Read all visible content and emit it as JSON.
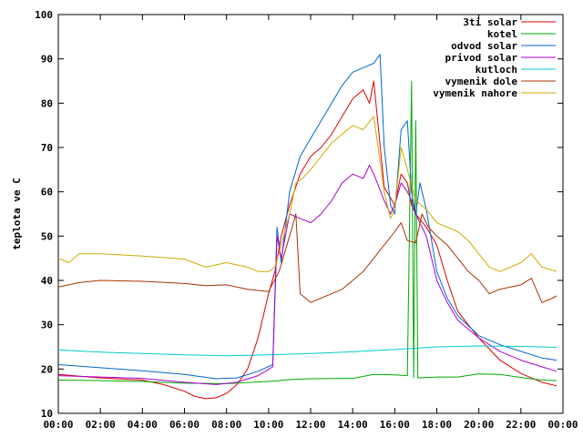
{
  "chart_data": {
    "type": "line",
    "title": "",
    "xlabel": "",
    "ylabel": "teplota ve C",
    "x_ticks": [
      "00:00",
      "02:00",
      "04:00",
      "06:00",
      "08:00",
      "10:00",
      "12:00",
      "14:00",
      "16:00",
      "18:00",
      "20:00",
      "22:00",
      "00:00"
    ],
    "xlim": [
      0,
      24
    ],
    "ylim": [
      10,
      100
    ],
    "y_ticks": [
      10,
      20,
      30,
      40,
      50,
      60,
      70,
      80,
      90,
      100
    ],
    "grid": false,
    "legend_position": "top-right",
    "series": [
      {
        "name": "3ti solar",
        "color": "#dd0000",
        "points": [
          [
            0,
            18.8
          ],
          [
            2,
            18
          ],
          [
            4,
            17.5
          ],
          [
            5,
            16.5
          ],
          [
            6,
            15
          ],
          [
            6.5,
            13.8
          ],
          [
            7,
            13.3
          ],
          [
            7.5,
            13.5
          ],
          [
            8,
            14.5
          ],
          [
            8.5,
            16.5
          ],
          [
            9,
            20
          ],
          [
            9.5,
            27
          ],
          [
            10,
            37
          ],
          [
            10.3,
            42
          ],
          [
            10.6,
            50
          ],
          [
            11,
            57
          ],
          [
            11.5,
            64
          ],
          [
            12,
            68
          ],
          [
            12.5,
            70
          ],
          [
            13,
            73
          ],
          [
            13.5,
            77
          ],
          [
            14,
            81
          ],
          [
            14.5,
            83
          ],
          [
            14.8,
            80
          ],
          [
            15,
            85
          ],
          [
            15.5,
            61
          ],
          [
            16,
            57
          ],
          [
            16.3,
            64
          ],
          [
            16.6,
            62
          ],
          [
            16.8,
            57
          ],
          [
            17,
            55
          ],
          [
            17.5,
            52
          ],
          [
            18,
            48
          ],
          [
            18.5,
            40
          ],
          [
            19,
            33
          ],
          [
            20,
            27
          ],
          [
            21,
            22
          ],
          [
            22,
            19
          ],
          [
            23,
            17
          ],
          [
            23.7,
            16.2
          ]
        ]
      },
      {
        "name": "kotel",
        "color": "#00aa00",
        "points": [
          [
            0,
            17.5
          ],
          [
            2,
            17.4
          ],
          [
            4,
            17.2
          ],
          [
            6,
            16.8
          ],
          [
            8,
            16.7
          ],
          [
            10,
            17.2
          ],
          [
            11,
            17.6
          ],
          [
            12,
            17.8
          ],
          [
            14,
            17.9
          ],
          [
            15,
            18.8
          ],
          [
            16,
            18.7
          ],
          [
            16.6,
            18.5
          ],
          [
            16.8,
            85
          ],
          [
            16.9,
            18
          ],
          [
            17,
            76
          ],
          [
            17.1,
            18
          ],
          [
            18,
            18.2
          ],
          [
            19,
            18.2
          ],
          [
            20,
            18.9
          ],
          [
            21,
            18.8
          ],
          [
            22,
            18.1
          ],
          [
            23,
            17.5
          ],
          [
            23.7,
            17.4
          ]
        ]
      },
      {
        "name": "odvod solar",
        "color": "#0066cc",
        "points": [
          [
            0,
            21
          ],
          [
            2,
            20.3
          ],
          [
            4,
            19.6
          ],
          [
            6,
            18.8
          ],
          [
            7.5,
            17.8
          ],
          [
            8.5,
            18
          ],
          [
            9.5,
            19.5
          ],
          [
            10.2,
            21
          ],
          [
            10.4,
            52
          ],
          [
            10.6,
            44
          ],
          [
            11,
            60
          ],
          [
            11.5,
            68
          ],
          [
            12,
            72
          ],
          [
            12.5,
            76
          ],
          [
            13,
            80
          ],
          [
            13.5,
            84
          ],
          [
            14,
            87
          ],
          [
            14.5,
            88
          ],
          [
            15,
            89
          ],
          [
            15.3,
            91
          ],
          [
            15.5,
            70
          ],
          [
            15.8,
            57
          ],
          [
            16,
            55
          ],
          [
            16.3,
            74
          ],
          [
            16.6,
            76
          ],
          [
            16.8,
            60
          ],
          [
            17,
            55
          ],
          [
            17.2,
            62
          ],
          [
            17.5,
            56
          ],
          [
            18,
            42
          ],
          [
            18.5,
            36
          ],
          [
            19,
            32
          ],
          [
            20,
            27.5
          ],
          [
            21,
            25.5
          ],
          [
            22,
            24
          ],
          [
            23,
            22.5
          ],
          [
            23.7,
            22
          ]
        ]
      },
      {
        "name": "privod solar",
        "color": "#aa00cc",
        "points": [
          [
            0,
            18.5
          ],
          [
            2,
            18.2
          ],
          [
            4,
            17.9
          ],
          [
            6,
            17
          ],
          [
            7.5,
            16.5
          ],
          [
            8.5,
            17
          ],
          [
            9.5,
            18.5
          ],
          [
            10.2,
            20.5
          ],
          [
            10.4,
            50
          ],
          [
            10.6,
            45
          ],
          [
            11,
            55
          ],
          [
            11.5,
            54
          ],
          [
            12,
            53
          ],
          [
            12.5,
            55
          ],
          [
            13,
            58
          ],
          [
            13.5,
            62
          ],
          [
            14,
            64
          ],
          [
            14.5,
            63
          ],
          [
            14.8,
            66
          ],
          [
            15,
            64
          ],
          [
            15.5,
            58
          ],
          [
            15.8,
            55
          ],
          [
            16,
            57
          ],
          [
            16.3,
            62
          ],
          [
            16.6,
            60
          ],
          [
            16.8,
            58
          ],
          [
            17,
            55
          ],
          [
            17.2,
            53
          ],
          [
            17.5,
            50
          ],
          [
            18,
            40
          ],
          [
            18.5,
            35
          ],
          [
            19,
            31
          ],
          [
            20,
            27
          ],
          [
            21,
            24
          ],
          [
            22,
            22
          ],
          [
            23,
            20.5
          ],
          [
            23.7,
            19.5
          ]
        ]
      },
      {
        "name": "kutloch",
        "color": "#00cccc",
        "points": [
          [
            0,
            24.3
          ],
          [
            2,
            23.8
          ],
          [
            4,
            23.5
          ],
          [
            6,
            23.2
          ],
          [
            8,
            23
          ],
          [
            10,
            23.2
          ],
          [
            12,
            23.5
          ],
          [
            14,
            23.9
          ],
          [
            16,
            24.4
          ],
          [
            18,
            25
          ],
          [
            20,
            25.2
          ],
          [
            22,
            25.1
          ],
          [
            23.7,
            24.9
          ]
        ]
      },
      {
        "name": "vymenik dole",
        "color": "#aa3300",
        "points": [
          [
            0,
            38.5
          ],
          [
            1,
            39.5
          ],
          [
            2,
            40
          ],
          [
            4,
            39.8
          ],
          [
            6,
            39.3
          ],
          [
            7,
            38.8
          ],
          [
            8,
            39
          ],
          [
            9,
            38
          ],
          [
            10,
            37.5
          ],
          [
            10.5,
            42
          ],
          [
            11,
            50
          ],
          [
            11.3,
            55
          ],
          [
            11.5,
            37
          ],
          [
            12,
            35
          ],
          [
            13,
            37
          ],
          [
            13.5,
            38
          ],
          [
            14,
            40
          ],
          [
            14.5,
            42
          ],
          [
            15,
            45
          ],
          [
            15.5,
            48
          ],
          [
            16,
            51
          ],
          [
            16.3,
            53
          ],
          [
            16.6,
            49
          ],
          [
            17,
            48.5
          ],
          [
            17.3,
            55
          ],
          [
            17.6,
            52
          ],
          [
            18,
            50
          ],
          [
            18.5,
            48
          ],
          [
            19,
            45
          ],
          [
            19.5,
            42
          ],
          [
            20,
            40
          ],
          [
            20.5,
            37
          ],
          [
            21,
            38
          ],
          [
            22,
            39
          ],
          [
            22.5,
            40.5
          ],
          [
            23,
            35
          ],
          [
            23.5,
            36
          ],
          [
            23.7,
            36.5
          ]
        ]
      },
      {
        "name": "vymenik nahore",
        "color": "#ccaa00",
        "points": [
          [
            0,
            45
          ],
          [
            0.5,
            44
          ],
          [
            1,
            46
          ],
          [
            2,
            46
          ],
          [
            4,
            45.5
          ],
          [
            6,
            44.8
          ],
          [
            7,
            43
          ],
          [
            8,
            44
          ],
          [
            9,
            43
          ],
          [
            9.5,
            42
          ],
          [
            10,
            42
          ],
          [
            10.3,
            43
          ],
          [
            10.6,
            48
          ],
          [
            11,
            55
          ],
          [
            11.3,
            62
          ],
          [
            11.6,
            63
          ],
          [
            12,
            65
          ],
          [
            12.5,
            68
          ],
          [
            13,
            71
          ],
          [
            13.5,
            73
          ],
          [
            14,
            75
          ],
          [
            14.5,
            74
          ],
          [
            15,
            77
          ],
          [
            15.5,
            60
          ],
          [
            15.8,
            54
          ],
          [
            16,
            56
          ],
          [
            16.3,
            70
          ],
          [
            16.6,
            65
          ],
          [
            17,
            58
          ],
          [
            17.5,
            56
          ],
          [
            18,
            53
          ],
          [
            19,
            51
          ],
          [
            19.5,
            49
          ],
          [
            20,
            46
          ],
          [
            20.5,
            43
          ],
          [
            21,
            42
          ],
          [
            22,
            44
          ],
          [
            22.5,
            46
          ],
          [
            23,
            43
          ],
          [
            23.7,
            42
          ]
        ]
      }
    ]
  }
}
